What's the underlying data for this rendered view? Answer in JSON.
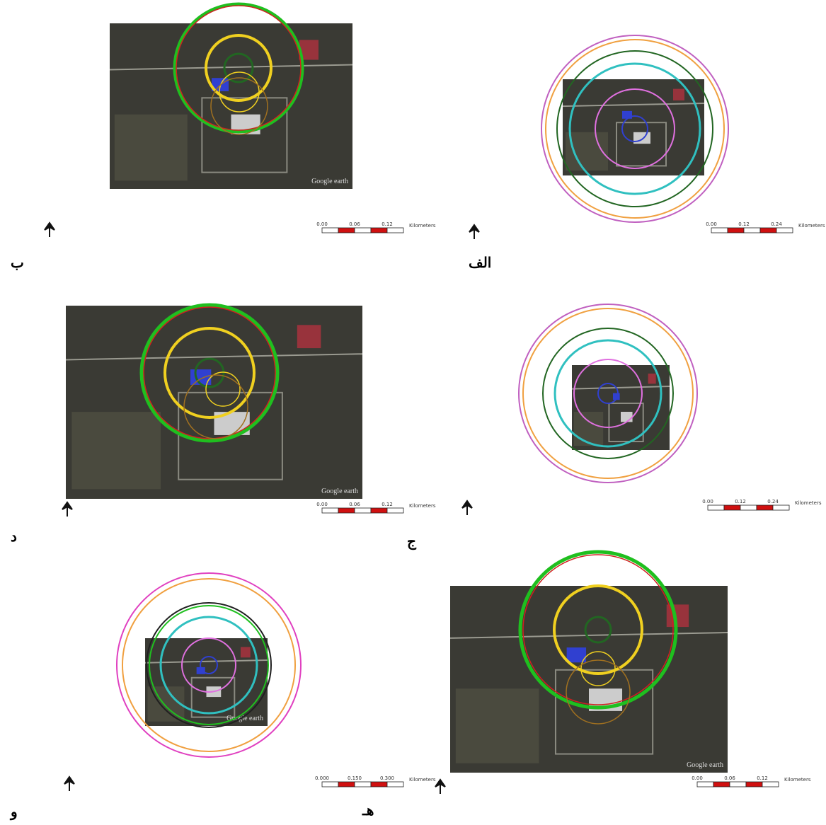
{
  "panels": [
    {
      "label": "الف",
      "scale": {
        "labels": [
          "0.00",
          "0.12",
          "0.24"
        ],
        "unit": "Kilometers"
      }
    },
    {
      "label": "ب",
      "scale": {
        "labels": [
          "0.00",
          "0.06",
          "0.12"
        ],
        "unit": "Kilometers"
      },
      "watermark": "Google earth"
    },
    {
      "label": "ج",
      "scale": {
        "labels": [
          "0.00",
          "0.12",
          "0.24"
        ],
        "unit": "Kilometers"
      }
    },
    {
      "label": "د",
      "scale": {
        "labels": [
          "0.00",
          "0.06",
          "0.12"
        ],
        "unit": "Kilometers"
      },
      "watermark": "Google earth"
    },
    {
      "label": "هـ",
      "scale": {
        "labels": [
          "0.00",
          "0.06",
          "0.12"
        ],
        "unit": "Kilometers"
      },
      "watermark": "Google earth"
    },
    {
      "label": "و",
      "scale": {
        "labels": [
          "0.000",
          "0.150",
          "0.300"
        ],
        "unit": "Kilometers"
      },
      "watermark": "Google earth"
    }
  ]
}
